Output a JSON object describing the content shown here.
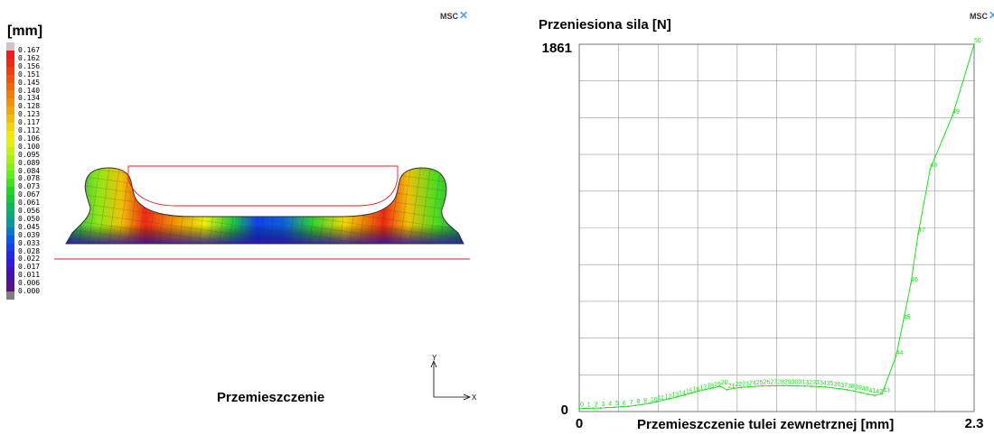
{
  "left_panel": {
    "logo_text": "MSC",
    "unit_label": "[mm]",
    "caption": "Przemieszczenie",
    "legend_values": [
      "0.167",
      "0.162",
      "0.156",
      "0.151",
      "0.145",
      "0.140",
      "0.134",
      "0.128",
      "0.123",
      "0.117",
      "0.112",
      "0.106",
      "0.100",
      "0.095",
      "0.089",
      "0.084",
      "0.078",
      "0.073",
      "0.067",
      "0.061",
      "0.056",
      "0.050",
      "0.045",
      "0.039",
      "0.033",
      "0.028",
      "0.022",
      "0.017",
      "0.011",
      "0.006",
      "0.000"
    ],
    "legend_colors": [
      "#c8c8c8",
      "#ee1a1a",
      "#f02a12",
      "#f23c0c",
      "#f25208",
      "#f06808",
      "#f07e08",
      "#f09408",
      "#f0aa08",
      "#f0c008",
      "#f0d608",
      "#f0ea08",
      "#e4f00a",
      "#c8f00e",
      "#a8f012",
      "#88f016",
      "#60ee1a",
      "#40e41e",
      "#20d622",
      "#10c83a",
      "#08b85a",
      "#08a87a",
      "#0898a0",
      "#0878c8",
      "#085ae8",
      "#1040f0",
      "#2028f0",
      "#3018e0",
      "#4010c0",
      "#4c10a0",
      "#5a1080",
      "#808080"
    ],
    "axis_labels": {
      "x": "X",
      "y": "Y"
    }
  },
  "right_panel": {
    "logo_text": "MSC",
    "chart_data": {
      "type": "line",
      "title": "",
      "ylabel": "Przeniesiona sila [N]",
      "xlabel": "Przemieszczenie tulei zewnetrznej [mm]",
      "xlim": [
        0,
        2.3
      ],
      "ylim": [
        0,
        1861
      ],
      "x_tick_labels": [
        "0",
        "2.3"
      ],
      "y_tick_labels": [
        "0",
        "1861"
      ],
      "grid": true,
      "series_color": "#22dd22",
      "series": [
        {
          "name": "",
          "point_labels": [
            "0",
            "1",
            "2",
            "3",
            "4",
            "5",
            "6",
            "7",
            "8",
            "9",
            "10",
            "11",
            "12",
            "13",
            "14",
            "15",
            "16",
            "17",
            "18",
            "19",
            "20",
            "21",
            "22",
            "23",
            "24",
            "25",
            "26",
            "27",
            "28",
            "29",
            "30",
            "31",
            "32",
            "33",
            "34",
            "35",
            "36",
            "37",
            "38",
            "39",
            "40",
            "41",
            "42",
            "43",
            "44",
            "45",
            "46",
            "47",
            "48",
            "49",
            "50"
          ],
          "x": [
            0.0,
            0.041,
            0.082,
            0.123,
            0.164,
            0.205,
            0.246,
            0.287,
            0.328,
            0.369,
            0.41,
            0.451,
            0.492,
            0.533,
            0.574,
            0.615,
            0.656,
            0.697,
            0.738,
            0.779,
            0.82,
            0.861,
            0.902,
            0.943,
            0.984,
            1.025,
            1.066,
            1.107,
            1.148,
            1.189,
            1.23,
            1.271,
            1.312,
            1.353,
            1.394,
            1.435,
            1.476,
            1.517,
            1.558,
            1.599,
            1.64,
            1.681,
            1.722,
            1.763,
            1.845,
            1.888,
            1.932,
            1.974,
            2.044,
            2.174,
            2.3
          ],
          "y": [
            15,
            16,
            17,
            18,
            20,
            22,
            24,
            27,
            31,
            36,
            42,
            50,
            58,
            66,
            75,
            84,
            94,
            104,
            112,
            120,
            128,
            110,
            118,
            122,
            125,
            128,
            130,
            130,
            131,
            131,
            131,
            130,
            129,
            128,
            126,
            124,
            120,
            115,
            110,
            104,
            96,
            88,
            82,
            90,
            280,
            460,
            650,
            900,
            1230,
            1500,
            1861
          ]
        }
      ]
    }
  }
}
